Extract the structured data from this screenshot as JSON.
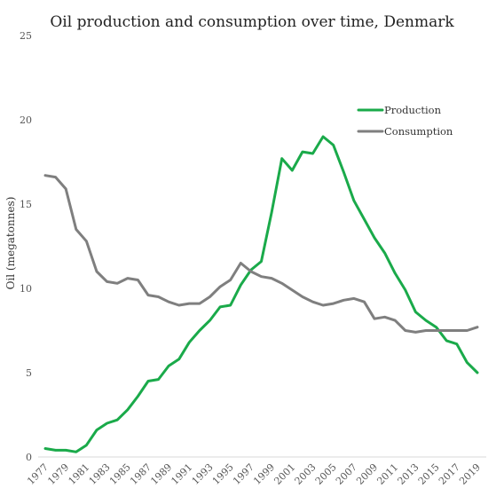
{
  "chart_data": {
    "type": "line",
    "title": "Oil production and consumption over time, Denmark",
    "xlabel": "",
    "ylabel": "Oil (megatonnes)",
    "ylim": [
      0,
      25
    ],
    "yticks": [
      0,
      5,
      10,
      15,
      20,
      25
    ],
    "x": [
      1977,
      1978,
      1979,
      1980,
      1981,
      1982,
      1983,
      1984,
      1985,
      1986,
      1987,
      1988,
      1989,
      1990,
      1991,
      1992,
      1993,
      1994,
      1995,
      1996,
      1997,
      1998,
      1999,
      2000,
      2001,
      2002,
      2003,
      2004,
      2005,
      2006,
      2007,
      2008,
      2009,
      2010,
      2011,
      2012,
      2013,
      2014,
      2015,
      2016,
      2017,
      2018,
      2019
    ],
    "xticks": [
      "1977",
      "1979",
      "1981",
      "1983",
      "1985",
      "1987",
      "1989",
      "1991",
      "1993",
      "1995",
      "1997",
      "1999",
      "2001",
      "2003",
      "2005",
      "2007",
      "2009",
      "2011",
      "2013",
      "2015",
      "2017",
      "2019"
    ],
    "grid": false,
    "legend_position": "top-right",
    "series": [
      {
        "name": "Production",
        "color": "#1aaa4a",
        "values": [
          0.5,
          0.4,
          0.4,
          0.3,
          0.7,
          1.6,
          2.0,
          2.2,
          2.8,
          3.6,
          4.5,
          4.6,
          5.4,
          5.8,
          6.8,
          7.5,
          8.1,
          8.9,
          9.0,
          10.2,
          11.1,
          11.6,
          14.5,
          17.7,
          17.0,
          18.1,
          18.0,
          19.0,
          18.5,
          16.9,
          15.2,
          14.1,
          13.0,
          12.1,
          10.9,
          9.9,
          8.6,
          8.1,
          7.7,
          6.9,
          6.7,
          5.6,
          5.0
        ]
      },
      {
        "name": "Consumption",
        "color": "#7f7f7f",
        "values": [
          16.7,
          16.6,
          15.9,
          13.5,
          12.8,
          11.0,
          10.4,
          10.3,
          10.6,
          10.5,
          9.6,
          9.5,
          9.2,
          9.0,
          9.1,
          9.1,
          9.5,
          10.1,
          10.5,
          11.5,
          11.0,
          10.7,
          10.6,
          10.3,
          9.9,
          9.5,
          9.2,
          9.0,
          9.1,
          9.3,
          9.4,
          9.2,
          8.2,
          8.3,
          8.1,
          7.5,
          7.4,
          7.5,
          7.5,
          7.5,
          7.5,
          7.5,
          7.7
        ]
      }
    ]
  }
}
